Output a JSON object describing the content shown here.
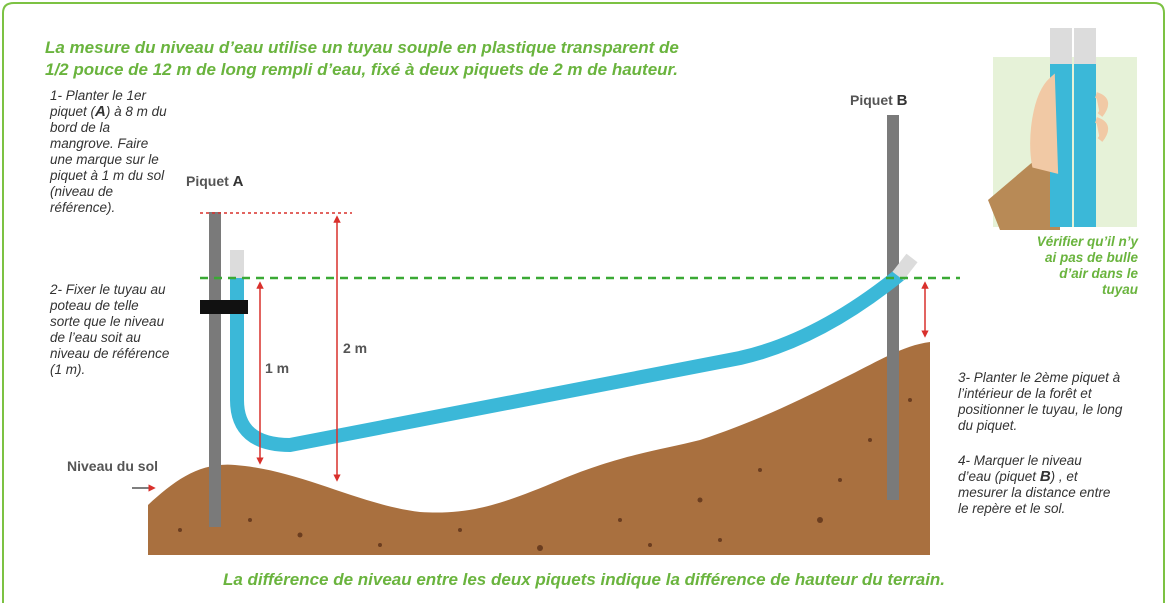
{
  "header": {
    "lines": [
      "La mesure du niveau d’eau utilise un tuyau souple en plastique transparent de",
      "1/2 pouce de 12 m de long rempli d’eau, fixé à deux piquets de 2 m de hauteur."
    ]
  },
  "steps": {
    "step1": [
      "1- Planter le 1er piquet (",
      "A",
      ") à 8 m du bord de la mangrove. Faire une marque sur le piquet à 1 m du sol (niveau de référence)."
    ],
    "step2": [
      "2- Fixer le tuyau au poteau de telle sorte que le niveau de l’eau soit au niveau de référence (1 m)."
    ],
    "step3": [
      "3- Planter le 2ème piquet à l’intérieur de la forêt et positionner le tuyau, le long du piquet."
    ],
    "step4": [
      "4- Marquer le niveau d’eau (piquet ",
      "B",
      ") , et mesurer la distance entre le repère et le sol."
    ]
  },
  "labels": {
    "piquet_a": [
      "Piquet ",
      "A"
    ],
    "piquet_b": [
      "Piquet ",
      "B"
    ],
    "one_m": "1 m",
    "two_m": "2 m",
    "ground": "Niveau du sol",
    "check": "Vérifier qu’il n’y ai pas de bulle d’air dans le tuyau"
  },
  "footer": "La différence de niveau entre les deux piquets indique la différence de hauteur du terrain."
}
